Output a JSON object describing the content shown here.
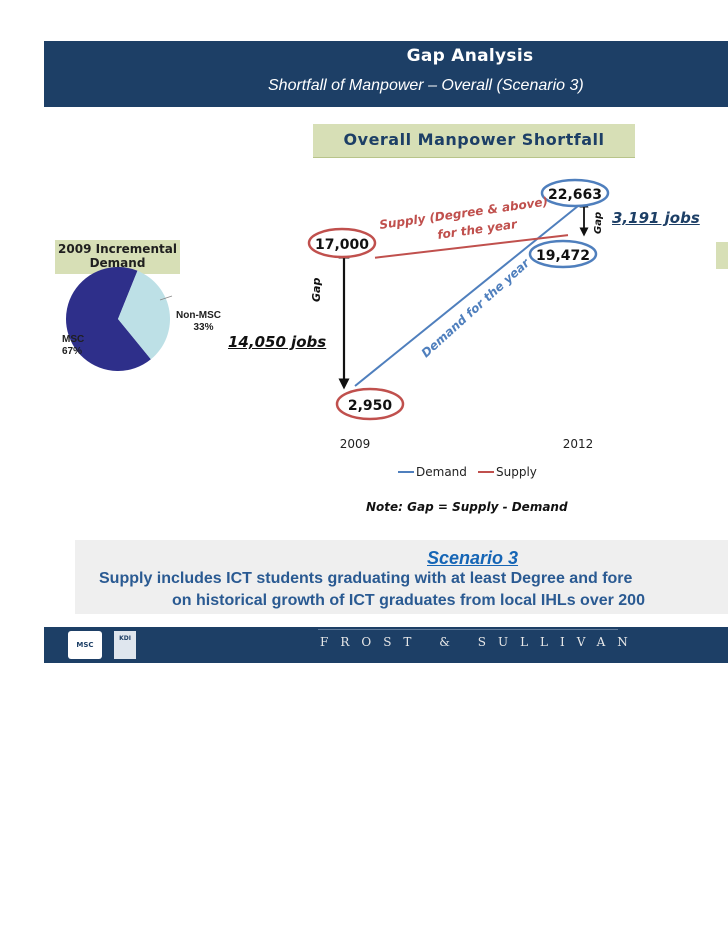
{
  "header": {
    "title": "Gap Analysis",
    "subtitle": "Shortfall of Manpower – Overall (Scenario 3)"
  },
  "panel_title": "Overall Manpower Shortfall",
  "pie": {
    "title": "2009 Incremental Demand",
    "slices": [
      {
        "name": "MSC",
        "percent": 67,
        "label": "67%",
        "color": "#2e2f8a"
      },
      {
        "name": "Non-MSC",
        "percent": 33,
        "label": "33%",
        "color": "#bde0e6"
      }
    ]
  },
  "chart_data": {
    "type": "line",
    "categories": [
      "2009",
      "2012"
    ],
    "series": [
      {
        "name": "Demand",
        "values": [
          2950,
          22663
        ],
        "color": "#4f7fbd"
      },
      {
        "name": "Supply",
        "values": [
          17000,
          19472
        ],
        "color": "#c0504d"
      }
    ],
    "value_labels": [
      "17,000",
      "2,950",
      "22,663",
      "19,472"
    ],
    "annotations": {
      "supply_line": [
        "Supply (Degree & above)",
        "for the year"
      ],
      "demand_line": "Demand for the year",
      "gap_word": "Gap",
      "gap_2009": "14,050 jobs",
      "gap_2012": "3,191 jobs"
    },
    "legend_position": "bottom",
    "note": "Note: Gap = Supply - Demand"
  },
  "scenario": {
    "title": "Scenario 3",
    "line1": "Supply includes ICT students graduating with at least Degree and fore",
    "line2": "on historical growth of ICT graduates from local IHLs over 200"
  },
  "footer": {
    "brand": "FROST & SULLIVAN",
    "logo_msc": "MSC",
    "logo_kdi": "KDI"
  }
}
